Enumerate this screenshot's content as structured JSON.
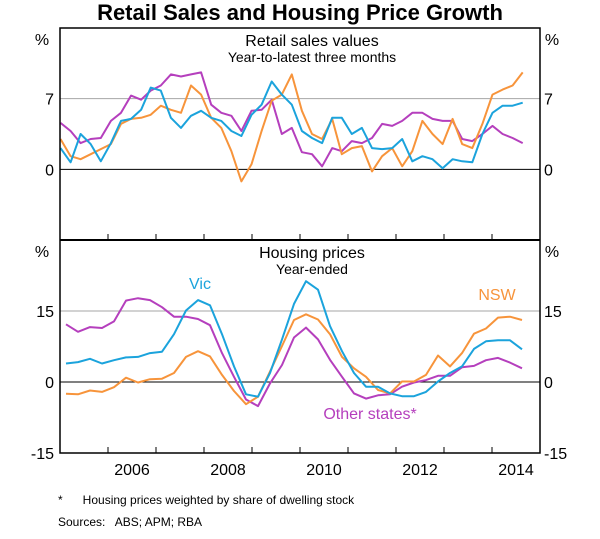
{
  "chart_data": {
    "title": "Retail Sales and Housing Price Growth",
    "footnote": "*      Housing prices weighted by share of dwelling stock",
    "sources": "Sources:   ABS; APM; RBA",
    "xlim": [
      2005,
      2015
    ],
    "x_tick_labels": [
      "2006",
      "2008",
      "2010",
      "2012",
      "2014"
    ],
    "colors": {
      "vic": "#1BA3DC",
      "nsw": "#F7943B",
      "other": "#B53FBD",
      "grid": "#A6A6A6"
    },
    "panels": [
      {
        "type": "line",
        "title": "Retail sales values",
        "subtitle": "Year-to-latest three months",
        "ylabel_left": "%",
        "ylabel_right": "%",
        "ylim": [
          -7,
          14
        ],
        "y_ticks": [
          0,
          7
        ],
        "y_tick_labels": [
          "0",
          "7"
        ],
        "grid": [
          7
        ],
        "x": [
          2005.01,
          2005.22,
          2005.43,
          2005.64,
          2005.85,
          2006.06,
          2006.27,
          2006.48,
          2006.69,
          2006.89,
          2007.1,
          2007.31,
          2007.52,
          2007.73,
          2007.94,
          2008.15,
          2008.36,
          2008.57,
          2008.78,
          2008.99,
          2009.2,
          2009.41,
          2009.62,
          2009.83,
          2010.04,
          2010.25,
          2010.46,
          2010.67,
          2010.87,
          2011.08,
          2011.29,
          2011.5,
          2011.71,
          2011.92,
          2012.13,
          2012.34,
          2012.55,
          2012.76,
          2012.97,
          2013.18,
          2013.38,
          2013.59,
          2013.8,
          2014.01,
          2014.22,
          2014.43,
          2014.64
        ],
        "series": [
          {
            "key": "other",
            "values": [
              4.6,
              3.8,
              2.6,
              3.0,
              3.1,
              4.8,
              5.6,
              7.3,
              6.9,
              7.8,
              8.3,
              9.4,
              9.2,
              9.4,
              9.6,
              6.4,
              5.6,
              5.3,
              3.8,
              5.8,
              5.9,
              6.9,
              3.5,
              4.1,
              1.7,
              1.5,
              0.3,
              2.1,
              1.8,
              2.8,
              2.6,
              3.1,
              4.5,
              4.3,
              4.8,
              5.6,
              5.6,
              5.0,
              4.8,
              4.8,
              3.0,
              2.8,
              3.5,
              4.3,
              3.5,
              3.1,
              2.6
            ]
          },
          {
            "key": "nsw",
            "values": [
              3.0,
              1.3,
              1.0,
              1.5,
              2.0,
              2.5,
              4.5,
              5.0,
              5.1,
              5.4,
              6.3,
              5.9,
              5.6,
              8.3,
              7.4,
              5.1,
              4.1,
              1.8,
              -1.2,
              0.5,
              3.8,
              6.8,
              7.4,
              9.4,
              5.8,
              3.5,
              3.0,
              5.0,
              1.5,
              2.1,
              2.3,
              -0.2,
              1.3,
              2.1,
              0.3,
              1.8,
              4.8,
              3.5,
              2.5,
              5.0,
              2.5,
              2.1,
              4.5,
              7.4,
              7.9,
              8.3,
              9.6
            ]
          },
          {
            "key": "vic",
            "values": [
              2.1,
              0.7,
              3.5,
              2.5,
              0.8,
              2.6,
              4.8,
              5.0,
              5.9,
              8.1,
              7.8,
              5.1,
              4.1,
              5.3,
              5.8,
              5.1,
              4.8,
              3.8,
              3.3,
              5.4,
              6.4,
              8.7,
              7.4,
              6.4,
              3.8,
              3.1,
              2.6,
              5.1,
              5.1,
              3.5,
              4.1,
              2.1,
              2.0,
              2.1,
              3.0,
              0.8,
              1.3,
              1.0,
              0.1,
              1.0,
              0.8,
              0.7,
              3.5,
              5.6,
              6.3,
              6.3,
              6.6
            ]
          }
        ]
      },
      {
        "type": "line",
        "title": "Housing prices",
        "subtitle": "Year-ended",
        "ylabel_left": "%",
        "ylabel_right": "%",
        "ylim": [
          -15,
          30
        ],
        "y_ticks": [
          -15,
          0,
          15
        ],
        "y_tick_labels": [
          "-15",
          "0",
          "15"
        ],
        "grid": [
          15
        ],
        "x": [
          2005.125,
          2005.375,
          2005.625,
          2005.875,
          2006.125,
          2006.375,
          2006.625,
          2006.875,
          2007.125,
          2007.375,
          2007.625,
          2007.875,
          2008.125,
          2008.375,
          2008.625,
          2008.875,
          2009.125,
          2009.375,
          2009.625,
          2009.875,
          2010.125,
          2010.375,
          2010.625,
          2010.875,
          2011.125,
          2011.375,
          2011.625,
          2011.875,
          2012.125,
          2012.375,
          2012.625,
          2012.875,
          2013.125,
          2013.375,
          2013.625,
          2013.875,
          2014.125,
          2014.375,
          2014.625
        ],
        "series": [
          {
            "key": "other",
            "name": "Other states*",
            "values": [
              12.2,
              10.6,
              11.6,
              11.4,
              12.8,
              17.2,
              17.7,
              17.3,
              15.8,
              13.8,
              13.8,
              13.3,
              12.0,
              6.1,
              1.1,
              -3.7,
              -5.1,
              -0.3,
              3.6,
              9.4,
              11.5,
              9.0,
              4.7,
              1.1,
              -2.4,
              -3.5,
              -2.8,
              -2.6,
              -1.0,
              -0.1,
              0.4,
              1.3,
              1.3,
              3.1,
              3.4,
              4.6,
              5.1,
              4.1,
              2.9
            ]
          },
          {
            "key": "nsw",
            "name": "NSW",
            "values": [
              -2.5,
              -2.6,
              -1.8,
              -2.1,
              -1.1,
              0.9,
              -0.1,
              0.6,
              0.7,
              1.9,
              5.3,
              6.5,
              5.4,
              1.5,
              -1.9,
              -4.7,
              -3.1,
              2.2,
              7.6,
              13.1,
              14.3,
              13.2,
              10.1,
              5.3,
              2.9,
              1.1,
              -1.7,
              -2.4,
              0.1,
              0.1,
              1.5,
              5.6,
              3.3,
              6.1,
              10.2,
              11.3,
              13.6,
              13.8,
              13.1
            ]
          },
          {
            "key": "vic",
            "name": "Vic",
            "values": [
              3.9,
              4.2,
              4.9,
              3.9,
              4.6,
              5.2,
              5.3,
              6.1,
              6.4,
              10.1,
              15.1,
              17.3,
              16.2,
              10.1,
              3.3,
              -2.6,
              -3.1,
              1.9,
              9.0,
              16.5,
              21.3,
              19.5,
              11.8,
              6.5,
              1.9,
              -1.0,
              -1.0,
              -2.4,
              -3.0,
              -3.0,
              -2.1,
              0.1,
              1.9,
              3.3,
              7.0,
              8.6,
              8.8,
              8.8,
              6.9
            ]
          }
        ]
      }
    ]
  }
}
